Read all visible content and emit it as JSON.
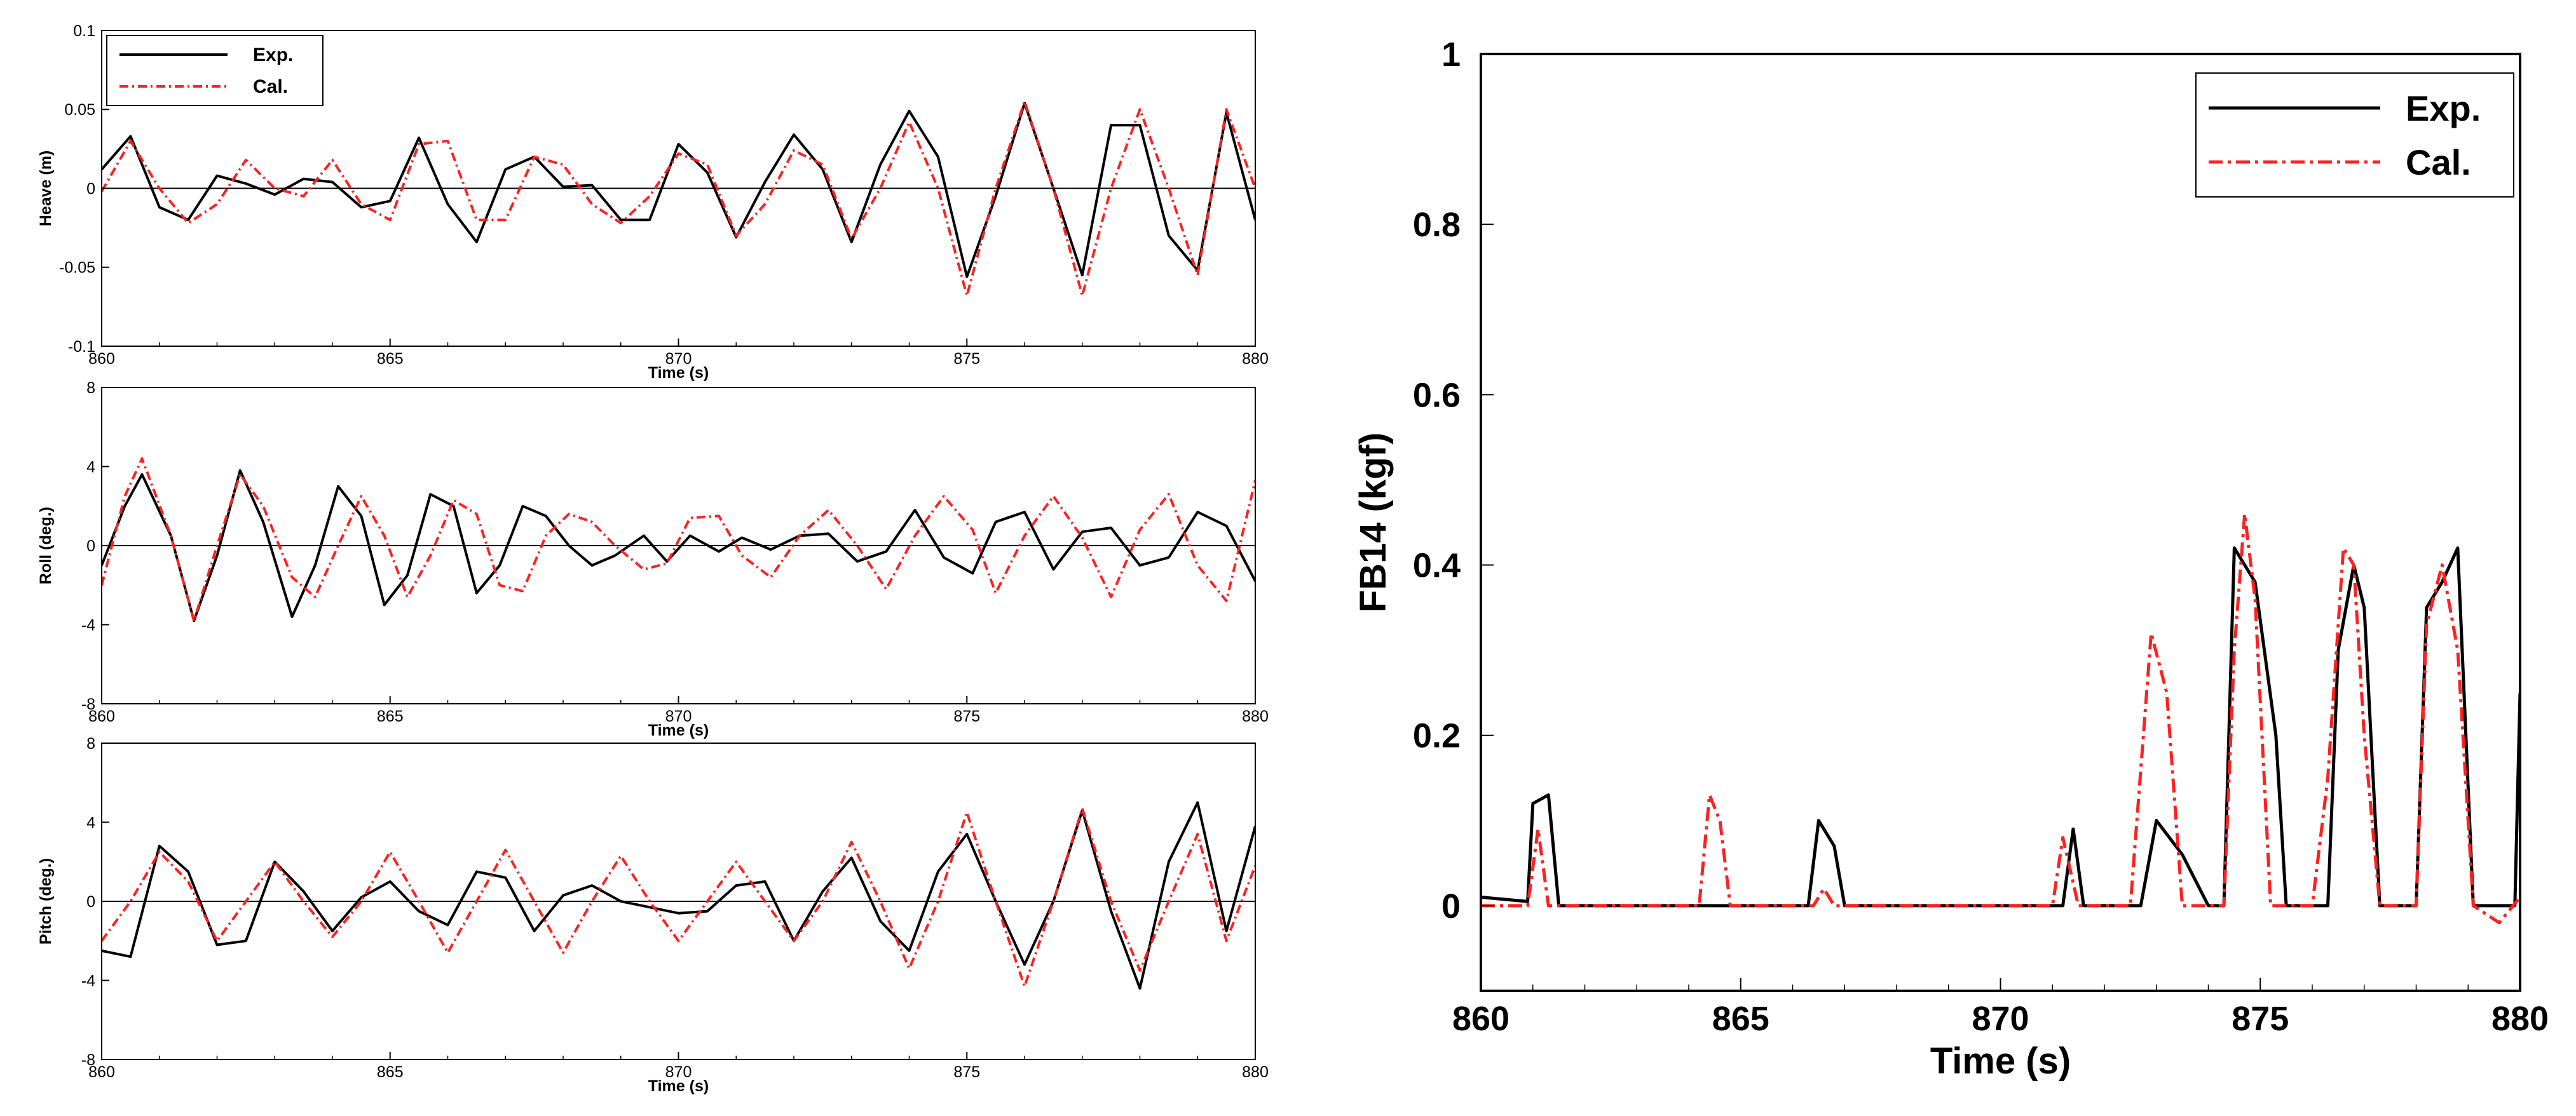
{
  "figure": {
    "series_colors": {
      "Exp.": "#000000",
      "Cal.": "#ff2020"
    }
  },
  "chart_data": [
    {
      "type": "line",
      "ylabel": "Heave (m)",
      "xlabel": "Time (s)",
      "xlim": [
        860,
        880
      ],
      "ylim": [
        -0.1,
        0.1
      ],
      "xticks": [
        860,
        865,
        870,
        875,
        880
      ],
      "yticks": [
        -0.1,
        -0.05,
        0,
        0.05,
        0.1
      ],
      "ytick_labels": [
        "-0.1",
        "-0.05",
        "0",
        "0.05",
        "0.1"
      ],
      "zero_line": true,
      "legend": {
        "entries": [
          "Exp.",
          "Cal."
        ],
        "placement": "top-left"
      },
      "series": [
        {
          "name": "Exp.",
          "color": "#000000",
          "style": "solid",
          "x": [
            860,
            860.5,
            861,
            861.5,
            862,
            862.5,
            863,
            863.5,
            864,
            864.5,
            865,
            865.5,
            866,
            866.5,
            867,
            867.5,
            868,
            868.5,
            869,
            869.5,
            870,
            870.5,
            871,
            871.5,
            872,
            872.5,
            873,
            873.5,
            874,
            874.5,
            875,
            875.5,
            876,
            876.5,
            877,
            877.5,
            878,
            878.5,
            879,
            879.5,
            880
          ],
          "y": [
            0.012,
            0.033,
            -0.012,
            -0.02,
            0.008,
            0.003,
            -0.004,
            0.006,
            0.004,
            -0.012,
            -0.008,
            0.032,
            -0.01,
            -0.034,
            0.012,
            0.02,
            0.001,
            0.002,
            -0.02,
            -0.02,
            0.028,
            0.01,
            -0.031,
            0.004,
            0.034,
            0.012,
            -0.034,
            0.015,
            0.049,
            0.02,
            -0.056,
            -0.005,
            0.054,
            0.0,
            -0.055,
            0.04,
            0.04,
            -0.03,
            -0.052,
            0.048,
            -0.02
          ]
        },
        {
          "name": "Cal.",
          "color": "#ff2020",
          "style": "dash-dot",
          "x": [
            860,
            860.5,
            861,
            861.5,
            862,
            862.5,
            863,
            863.5,
            864,
            864.5,
            865,
            865.5,
            866,
            866.5,
            867,
            867.5,
            868,
            868.5,
            869,
            869.5,
            870,
            870.5,
            871,
            871.5,
            872,
            872.5,
            873,
            873.5,
            874,
            874.5,
            875,
            875.5,
            876,
            876.5,
            877,
            877.5,
            878,
            878.5,
            879,
            879.5,
            880
          ],
          "y": [
            -0.002,
            0.03,
            0.0,
            -0.022,
            -0.01,
            0.018,
            0.0,
            -0.005,
            0.018,
            -0.01,
            -0.02,
            0.028,
            0.03,
            -0.02,
            -0.02,
            0.02,
            0.015,
            -0.01,
            -0.022,
            -0.005,
            0.022,
            0.015,
            -0.03,
            -0.01,
            0.024,
            0.015,
            -0.032,
            0.0,
            0.042,
            0.0,
            -0.068,
            0.0,
            0.055,
            0.0,
            -0.068,
            0.0,
            0.05,
            0.0,
            -0.055,
            0.05,
            0.0
          ]
        }
      ]
    },
    {
      "type": "line",
      "ylabel": "Roll (deg.)",
      "xlabel": "Time (s)",
      "xlim": [
        860,
        880
      ],
      "ylim": [
        -8,
        8
      ],
      "xticks": [
        860,
        865,
        870,
        875,
        880
      ],
      "yticks": [
        -8,
        -4,
        0,
        4,
        8
      ],
      "ytick_labels": [
        "-8",
        "-4",
        "0",
        "4",
        "8"
      ],
      "zero_line": true,
      "series": [
        {
          "name": "Exp.",
          "color": "#000000",
          "style": "solid",
          "x": [
            860,
            860.4,
            860.7,
            861.2,
            861.6,
            862,
            862.4,
            862.8,
            863.3,
            863.7,
            864.1,
            864.5,
            864.9,
            865.3,
            865.7,
            866.1,
            866.5,
            866.9,
            867.3,
            867.7,
            868.1,
            868.5,
            868.9,
            869.4,
            869.8,
            870.2,
            870.7,
            871.1,
            871.6,
            872.1,
            872.6,
            873.1,
            873.6,
            874.1,
            874.6,
            875.1,
            875.5,
            876,
            876.5,
            877,
            877.5,
            878,
            878.5,
            879,
            879.5,
            880
          ],
          "y": [
            -1,
            2,
            3.6,
            0.5,
            -3.8,
            -0.5,
            3.8,
            1.2,
            -3.6,
            -1,
            3,
            1.5,
            -3,
            -1.5,
            2.6,
            2,
            -2.4,
            -1,
            2,
            1.5,
            0,
            -1,
            -0.5,
            0.5,
            -0.8,
            0.5,
            -0.3,
            0.4,
            -0.2,
            0.5,
            0.6,
            -0.8,
            -0.3,
            1.8,
            -0.6,
            -1.4,
            1.2,
            1.7,
            -1.2,
            0.7,
            0.9,
            -1,
            -0.6,
            1.7,
            1,
            -1.8
          ]
        },
        {
          "name": "Cal.",
          "color": "#ff2020",
          "style": "dash-dot",
          "x": [
            860,
            860.4,
            860.7,
            861.2,
            861.6,
            862,
            862.4,
            862.8,
            863.3,
            863.7,
            864.1,
            864.5,
            864.9,
            865.3,
            865.7,
            866.1,
            866.5,
            866.9,
            867.3,
            867.7,
            868.1,
            868.5,
            868.9,
            869.4,
            869.8,
            870.2,
            870.7,
            871.1,
            871.6,
            872.1,
            872.6,
            873.1,
            873.6,
            874.1,
            874.6,
            875.1,
            875.5,
            876,
            876.5,
            877,
            877.5,
            878,
            878.5,
            879,
            879.5,
            880
          ],
          "y": [
            -2,
            2.5,
            4.4,
            0.5,
            -3.8,
            0,
            3.6,
            2,
            -1.6,
            -2.6,
            0,
            2.5,
            0.5,
            -2.6,
            -0.5,
            2.3,
            1.6,
            -2,
            -2.3,
            0.5,
            1.6,
            1.2,
            0,
            -1.2,
            -0.9,
            1.4,
            1.5,
            -0.5,
            -1.6,
            0.5,
            1.8,
            0,
            -2.2,
            0.5,
            2.5,
            0.8,
            -2.4,
            0.5,
            2.5,
            0.4,
            -2.6,
            0.8,
            2.6,
            -1,
            -2.8,
            3.3
          ]
        }
      ]
    },
    {
      "type": "line",
      "ylabel": "Pitch (deg.)",
      "xlabel": "Time (s)",
      "xlim": [
        860,
        880
      ],
      "ylim": [
        -8,
        8
      ],
      "xticks": [
        860,
        865,
        870,
        875,
        880
      ],
      "yticks": [
        -8,
        -4,
        0,
        4,
        8
      ],
      "ytick_labels": [
        "-8",
        "-4",
        "0",
        "4",
        "8"
      ],
      "zero_line": true,
      "series": [
        {
          "name": "Exp.",
          "color": "#000000",
          "style": "solid",
          "x": [
            860,
            860.5,
            861,
            861.5,
            862,
            862.5,
            863,
            863.5,
            864,
            864.5,
            865,
            865.5,
            866,
            866.5,
            867,
            867.5,
            868,
            868.5,
            869,
            869.5,
            870,
            870.5,
            871,
            871.5,
            872,
            872.5,
            873,
            873.5,
            874,
            874.5,
            875,
            875.5,
            876,
            876.5,
            877,
            877.5,
            878,
            878.5,
            879,
            879.5,
            880
          ],
          "y": [
            -2.5,
            -2.8,
            2.8,
            1.5,
            -2.2,
            -2,
            2,
            0.5,
            -1.5,
            0.2,
            1,
            -0.5,
            -1.2,
            1.5,
            1.2,
            -1.5,
            0.3,
            0.8,
            0,
            -0.3,
            -0.6,
            -0.5,
            0.8,
            1,
            -2,
            0.5,
            2.2,
            -1,
            -2.5,
            1.5,
            3.4,
            0,
            -3.2,
            0,
            4.6,
            -0.5,
            -4.4,
            2,
            5,
            -1.5,
            3.8
          ]
        },
        {
          "name": "Cal.",
          "color": "#ff2020",
          "style": "dash-dot",
          "x": [
            860,
            860.5,
            861,
            861.5,
            862,
            862.5,
            863,
            863.5,
            864,
            864.5,
            865,
            865.5,
            866,
            866.5,
            867,
            867.5,
            868,
            868.5,
            869,
            869.5,
            870,
            870.5,
            871,
            871.5,
            872,
            872.5,
            873,
            873.5,
            874,
            874.5,
            875,
            875.5,
            876,
            876.5,
            877,
            877.5,
            878,
            878.5,
            879,
            879.5,
            880
          ],
          "y": [
            -2,
            0,
            2.5,
            1,
            -2,
            0,
            2,
            0,
            -1.8,
            0,
            2.5,
            0,
            -2.6,
            0,
            2.6,
            0,
            -2.6,
            0,
            2.3,
            0,
            -2,
            0,
            2,
            0,
            -2,
            0,
            3,
            0,
            -3.4,
            0,
            4.5,
            0,
            -4.3,
            0,
            4.7,
            0,
            -3.5,
            0,
            3.4,
            -2,
            1.8
          ]
        }
      ]
    },
    {
      "type": "line",
      "ylabel": "FB14 (kgf)",
      "xlabel": "Time (s)",
      "xlim": [
        860,
        880
      ],
      "ylim": [
        -0.1,
        1
      ],
      "xticks": [
        860,
        865,
        870,
        875,
        880
      ],
      "yticks": [
        0,
        0.2,
        0.4,
        0.6,
        0.8,
        1
      ],
      "ytick_labels": [
        "0",
        "0.2",
        "0.4",
        "0.6",
        "0.8",
        "1"
      ],
      "legend": {
        "entries": [
          "Exp.",
          "Cal."
        ],
        "placement": "top-right"
      },
      "series": [
        {
          "name": "Exp.",
          "color": "#000000",
          "style": "solid",
          "x": [
            860,
            860.9,
            861.0,
            861.3,
            861.5,
            862,
            864,
            866,
            866.3,
            866.5,
            866.8,
            867,
            869,
            871,
            871.2,
            871.4,
            871.6,
            872,
            872.7,
            873.0,
            873.5,
            874.0,
            874.3,
            874.5,
            874.7,
            874.9,
            875.3,
            875.5,
            876,
            876.3,
            876.5,
            876.8,
            877.0,
            877.3,
            877.5,
            878,
            878.2,
            878.5,
            878.8,
            879.1,
            879.5,
            879.9,
            880
          ],
          "y": [
            0.01,
            0.005,
            0.12,
            0.13,
            0.0,
            0.0,
            0.0,
            0.0,
            0.0,
            0.1,
            0.07,
            0.0,
            0.0,
            0.0,
            0.0,
            0.09,
            0.0,
            0.0,
            0.0,
            0.1,
            0.06,
            0.0,
            0.0,
            0.42,
            0.4,
            0.38,
            0.2,
            0.0,
            0.0,
            0.0,
            0.3,
            0.4,
            0.35,
            0.0,
            0.0,
            0.0,
            0.35,
            0.38,
            0.42,
            0.0,
            0.0,
            0.0,
            0.25
          ]
        },
        {
          "name": "Cal.",
          "color": "#ff2020",
          "style": "dash-dot",
          "x": [
            860,
            860.9,
            861.1,
            861.3,
            861.6,
            862,
            864,
            864.2,
            864.4,
            864.6,
            864.8,
            865,
            866.4,
            866.6,
            866.8,
            867,
            869,
            871,
            871.2,
            871.5,
            872,
            872.5,
            872.9,
            873.2,
            873.5,
            874,
            874.3,
            874.5,
            874.7,
            874.9,
            875.2,
            875.5,
            876,
            876.3,
            876.6,
            876.8,
            877.0,
            877.3,
            877.6,
            878,
            878.2,
            878.5,
            878.8,
            879.1,
            879.6,
            880
          ],
          "y": [
            0.0,
            0.0,
            0.09,
            0.0,
            0.0,
            0.0,
            0.0,
            0.0,
            0.13,
            0.1,
            0.0,
            0.0,
            0.0,
            0.02,
            0.0,
            0.0,
            0.0,
            0.0,
            0.08,
            0.0,
            0.0,
            0.0,
            0.32,
            0.25,
            0.0,
            0.0,
            0.0,
            0.3,
            0.46,
            0.36,
            0.0,
            0.0,
            0.0,
            0.15,
            0.42,
            0.4,
            0.2,
            0.0,
            0.0,
            0.0,
            0.33,
            0.4,
            0.3,
            0.0,
            -0.02,
            0.01
          ]
        }
      ]
    }
  ]
}
